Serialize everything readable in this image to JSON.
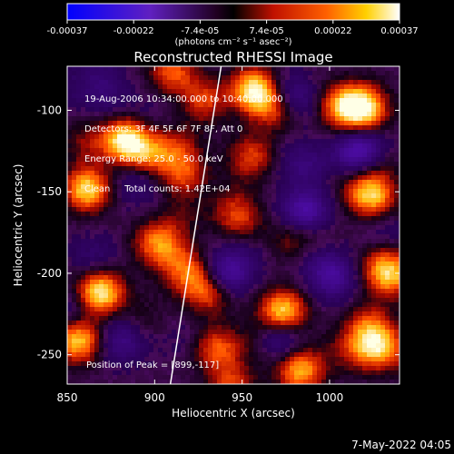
{
  "colorbar": {
    "ticks": [
      "-0.00037",
      "-0.00022",
      "-7.4e-05",
      "7.4e-05",
      "0.00022",
      "0.00037"
    ],
    "units_label": "(photons cm⁻² s⁻¹ asec⁻²)"
  },
  "plot": {
    "title": "Reconstructed RHESSI Image",
    "info_lines": [
      "19-Aug-2006 10:34:00.000 to 10:40:00.000",
      "Detectors: 3F 4F 5F 6F 7F 8F, Att 0",
      "Energy Range: 25.0 - 50.0 keV",
      "Clean     Total counts: 1.42E+04"
    ],
    "peak_label": "Position of Peak = [899,-117]",
    "footer_date": "7-May-2022 04:05"
  },
  "chart_data": {
    "type": "heatmap",
    "title": "Reconstructed RHESSI Image",
    "xlabel": "Heliocentric X (arcsec)",
    "ylabel": "Heliocentric Y (arcsec)",
    "xlim": [
      850,
      1040
    ],
    "ylim": [
      -268,
      -73
    ],
    "x_ticks": [
      850,
      900,
      950,
      1000
    ],
    "y_ticks": [
      -250,
      -200,
      -150,
      -100
    ],
    "colorbar_range": [
      -0.00037,
      0.00037
    ],
    "colormap": "blue-purple-black-red-yellow-white",
    "limb_line": {
      "x": [
        909,
        938
      ],
      "y": [
        -268,
        -73
      ]
    },
    "hot_spots": [
      {
        "x": 859,
        "y": -147,
        "intensity": 0.95
      },
      {
        "x": 882,
        "y": -117,
        "intensity": 0.9
      },
      {
        "x": 868,
        "y": -210,
        "intensity": 0.85
      },
      {
        "x": 855,
        "y": -240,
        "intensity": 0.8
      },
      {
        "x": 925,
        "y": -93,
        "intensity": 0.7
      },
      {
        "x": 972,
        "y": -222,
        "intensity": 0.85
      },
      {
        "x": 1023,
        "y": -152,
        "intensity": 0.75
      },
      {
        "x": 1033,
        "y": -200,
        "intensity": 0.7
      },
      {
        "x": 982,
        "y": -258,
        "intensity": 0.75
      },
      {
        "x": 1005,
        "y": -96,
        "intensity": 0.6
      },
      {
        "x": 955,
        "y": -85,
        "intensity": 0.65
      },
      {
        "x": 900,
        "y": -180,
        "intensity": 0.6
      },
      {
        "x": 935,
        "y": -245,
        "intensity": 0.55
      },
      {
        "x": 1030,
        "y": -245,
        "intensity": 0.6
      }
    ],
    "cold_spots": [
      {
        "x": 968,
        "y": -240,
        "intensity": -0.8
      },
      {
        "x": 985,
        "y": -160,
        "intensity": -0.6
      },
      {
        "x": 1015,
        "y": -125,
        "intensity": -0.7
      },
      {
        "x": 940,
        "y": -200,
        "intensity": -0.6
      },
      {
        "x": 1000,
        "y": -200,
        "intensity": -0.55
      },
      {
        "x": 880,
        "y": -240,
        "intensity": -0.4
      }
    ]
  }
}
